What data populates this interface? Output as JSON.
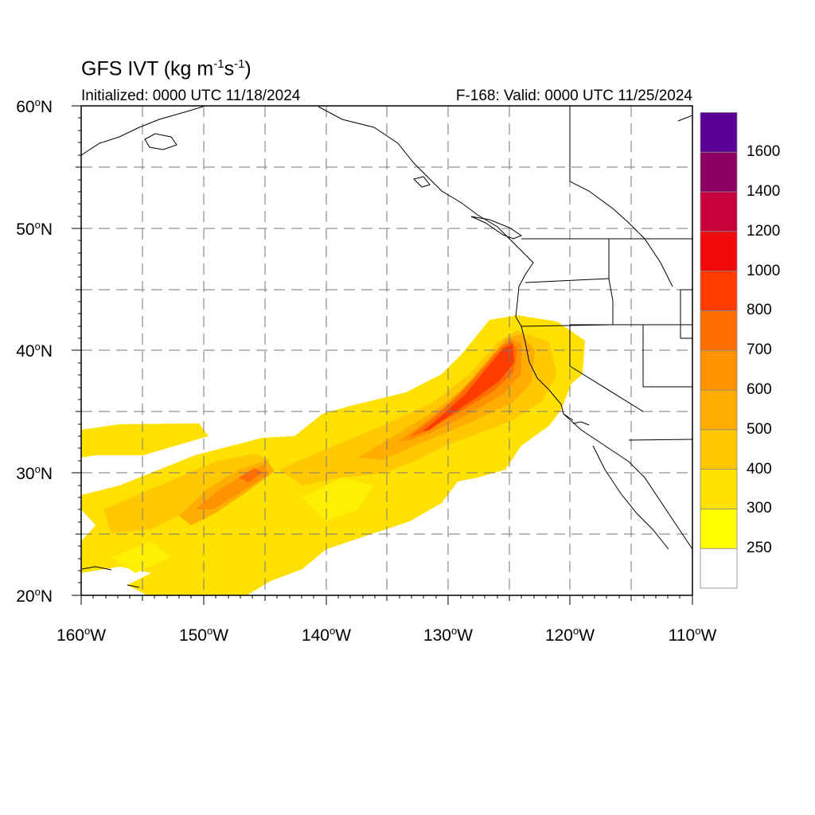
{
  "title": {
    "main": "GFS IVT (kg m",
    "unit_exp1": "-1",
    "unit_mid": "s",
    "unit_exp2": "-1",
    "unit_end": ")"
  },
  "init_text": "Initialized: 0000 UTC 11/18/2024",
  "valid_text": "F-168: Valid: 0000 UTC 11/25/2024",
  "lat_ticks": [
    {
      "deg": "60",
      "hemi": "N"
    },
    {
      "deg": "50",
      "hemi": "N"
    },
    {
      "deg": "40",
      "hemi": "N"
    },
    {
      "deg": "30",
      "hemi": "N"
    },
    {
      "deg": "20",
      "hemi": "N"
    }
  ],
  "lon_ticks": [
    {
      "deg": "160",
      "hemi": "W"
    },
    {
      "deg": "150",
      "hemi": "W"
    },
    {
      "deg": "140",
      "hemi": "W"
    },
    {
      "deg": "130",
      "hemi": "W"
    },
    {
      "deg": "120",
      "hemi": "W"
    },
    {
      "deg": "110",
      "hemi": "W"
    }
  ],
  "colorbar": {
    "labels": [
      "250",
      "300",
      "400",
      "500",
      "600",
      "700",
      "800",
      "1000",
      "1200",
      "1400",
      "1600"
    ],
    "colors": [
      "#ffffff",
      "#ffff00",
      "#ffe100",
      "#ffc800",
      "#ffad00",
      "#ff9200",
      "#ff6e00",
      "#ff3c00",
      "#f00a0a",
      "#c8003c",
      "#8c0064",
      "#5a0096"
    ]
  },
  "map": {
    "lat_range": [
      20,
      60
    ],
    "lon_range": [
      -160,
      -110
    ],
    "grid_spacing_deg": 5,
    "grid_style": "dashed",
    "field": "IVT"
  }
}
